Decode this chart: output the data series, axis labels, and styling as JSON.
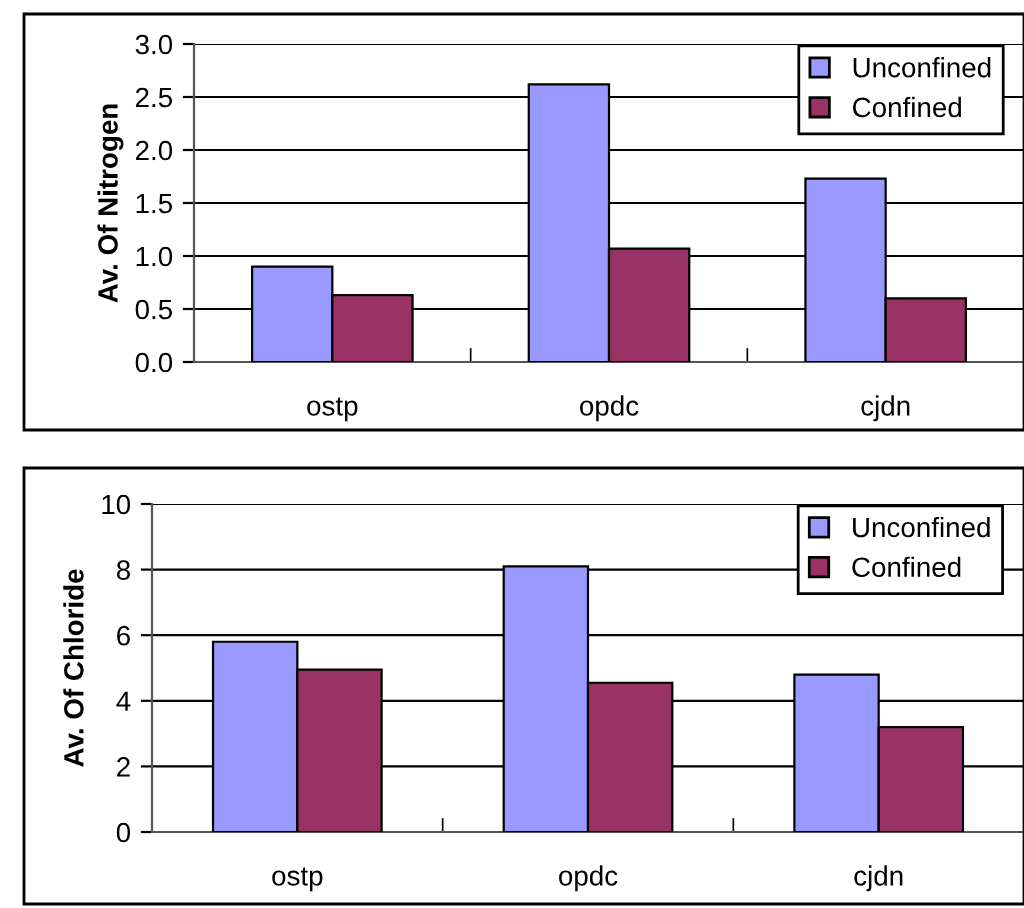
{
  "chart_data": [
    {
      "type": "bar",
      "ylabel": "Av. Of Nitrogen",
      "categories": [
        "ostp",
        "opdc",
        "cjdn"
      ],
      "series": [
        {
          "name": "Unconfined",
          "color": "#9999ff",
          "values": [
            0.9,
            2.62,
            1.73
          ]
        },
        {
          "name": "Confined",
          "color": "#993366",
          "values": [
            0.63,
            1.07,
            0.6
          ]
        }
      ],
      "ylim": [
        0,
        3.0
      ],
      "yticks": [
        {
          "value": 0,
          "label": "0.0"
        },
        0.5,
        {
          "value": 1,
          "label": "1.0"
        },
        1.5,
        {
          "value": 2,
          "label": "2.0"
        },
        2.5,
        {
          "value": 3,
          "label": "3.0"
        }
      ],
      "grid": "y",
      "legend": "top right"
    },
    {
      "type": "bar",
      "ylabel": "Av. Of Chloride",
      "categories": [
        "ostp",
        "opdc",
        "cjdn"
      ],
      "series": [
        {
          "name": "Unconfined",
          "color": "#9999ff",
          "values": [
            5.8,
            8.1,
            4.8
          ]
        },
        {
          "name": "Confined",
          "color": "#993366",
          "values": [
            4.95,
            4.55,
            3.2
          ]
        }
      ],
      "ylim": [
        0,
        10
      ],
      "yticks": [
        0,
        2,
        4,
        6,
        8,
        10
      ],
      "grid": "y",
      "legend": "top right"
    }
  ]
}
